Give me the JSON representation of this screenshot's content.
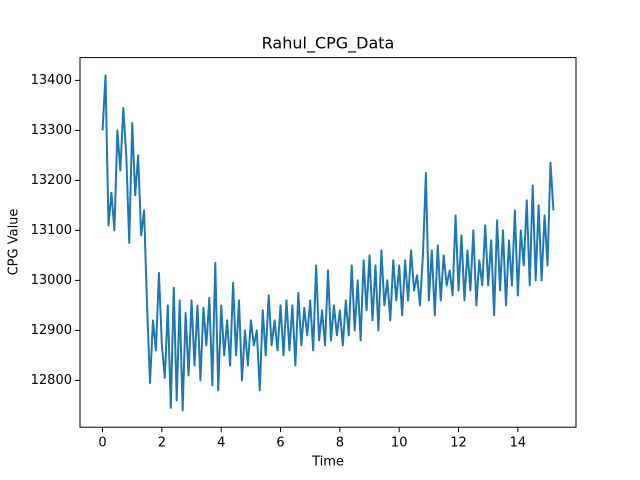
{
  "chart_data": {
    "type": "line",
    "title": "Rahul_CPG_Data",
    "x_label": "Time",
    "y_label": "CPG Value",
    "x": [
      0.0,
      0.1,
      0.2,
      0.3,
      0.4,
      0.5,
      0.6,
      0.7,
      0.8,
      0.9,
      1.0,
      1.1,
      1.2,
      1.3,
      1.4,
      1.5,
      1.6,
      1.7,
      1.8,
      1.9,
      2.0,
      2.1,
      2.2,
      2.3,
      2.4,
      2.5,
      2.6,
      2.7,
      2.8,
      2.9,
      3.0,
      3.1,
      3.2,
      3.3,
      3.4,
      3.5,
      3.6,
      3.7,
      3.8,
      3.9,
      4.0,
      4.1,
      4.2,
      4.3,
      4.4,
      4.5,
      4.6,
      4.7,
      4.8,
      4.9,
      5.0,
      5.1,
      5.2,
      5.3,
      5.4,
      5.5,
      5.6,
      5.7,
      5.8,
      5.9,
      6.0,
      6.1,
      6.2,
      6.3,
      6.4,
      6.5,
      6.6,
      6.7,
      6.8,
      6.9,
      7.0,
      7.1,
      7.2,
      7.3,
      7.4,
      7.5,
      7.6,
      7.7,
      7.8,
      7.9,
      8.0,
      8.1,
      8.2,
      8.3,
      8.4,
      8.5,
      8.6,
      8.7,
      8.8,
      8.9,
      9.0,
      9.1,
      9.2,
      9.3,
      9.4,
      9.5,
      9.6,
      9.7,
      9.8,
      9.9,
      10.0,
      10.1,
      10.2,
      10.3,
      10.4,
      10.5,
      10.6,
      10.7,
      10.8,
      10.9,
      11.0,
      11.1,
      11.2,
      11.3,
      11.4,
      11.5,
      11.6,
      11.7,
      11.8,
      11.9,
      12.0,
      12.1,
      12.2,
      12.3,
      12.4,
      12.5,
      12.6,
      12.7,
      12.8,
      12.9,
      13.0,
      13.1,
      13.2,
      13.3,
      13.4,
      13.5,
      13.6,
      13.7,
      13.8,
      13.9,
      14.0,
      14.1,
      14.2,
      14.3,
      14.4,
      14.5,
      14.6,
      14.7,
      14.8,
      14.9,
      15.0,
      15.1,
      15.2
    ],
    "series": [
      {
        "name": "CPG Value",
        "color": "#1f77b4",
        "values": [
          13300,
          13410,
          13110,
          13175,
          13100,
          13300,
          13220,
          13345,
          13250,
          13075,
          13315,
          13170,
          13250,
          13090,
          13140,
          12950,
          12795,
          12920,
          12860,
          13015,
          12870,
          12805,
          12950,
          12745,
          12985,
          12760,
          12960,
          12740,
          12935,
          12810,
          12960,
          12830,
          12950,
          12800,
          12945,
          12870,
          12965,
          12790,
          13035,
          12780,
          12950,
          12850,
          12920,
          12830,
          12995,
          12850,
          12960,
          12800,
          12900,
          12830,
          12920,
          12870,
          12900,
          12780,
          12940,
          12850,
          12970,
          12870,
          12920,
          12860,
          12950,
          12850,
          12960,
          12860,
          12950,
          12830,
          12975,
          12870,
          12945,
          12890,
          12960,
          12860,
          13030,
          12880,
          12940,
          12870,
          13020,
          12880,
          12950,
          12890,
          12940,
          12870,
          12960,
          12890,
          13030,
          12900,
          13000,
          12880,
          13040,
          12940,
          13050,
          12920,
          13030,
          12900,
          13060,
          12950,
          13000,
          12920,
          13040,
          12960,
          13030,
          12930,
          13040,
          12960,
          13060,
          12980,
          13010,
          12950,
          13050,
          13215,
          12960,
          13060,
          12930,
          13070,
          12960,
          13050,
          12990,
          13020,
          12970,
          13130,
          12980,
          13090,
          12960,
          13060,
          12980,
          13100,
          12950,
          13040,
          12990,
          13110,
          12990,
          13080,
          12930,
          13120,
          12980,
          13100,
          12950,
          13080,
          12990,
          13140,
          12970,
          13100,
          13030,
          13160,
          12990,
          13190,
          13000,
          13150,
          13000,
          13130,
          13030,
          13235,
          13140
        ]
      }
    ],
    "xlim": [
      -0.76,
      15.96
    ],
    "ylim": [
      12706.4,
      13445.6
    ],
    "xticks": [
      0,
      2,
      4,
      6,
      8,
      10,
      12,
      14
    ],
    "yticks": [
      12800,
      12900,
      13000,
      13100,
      13200,
      13300,
      13400
    ],
    "grid": false
  }
}
